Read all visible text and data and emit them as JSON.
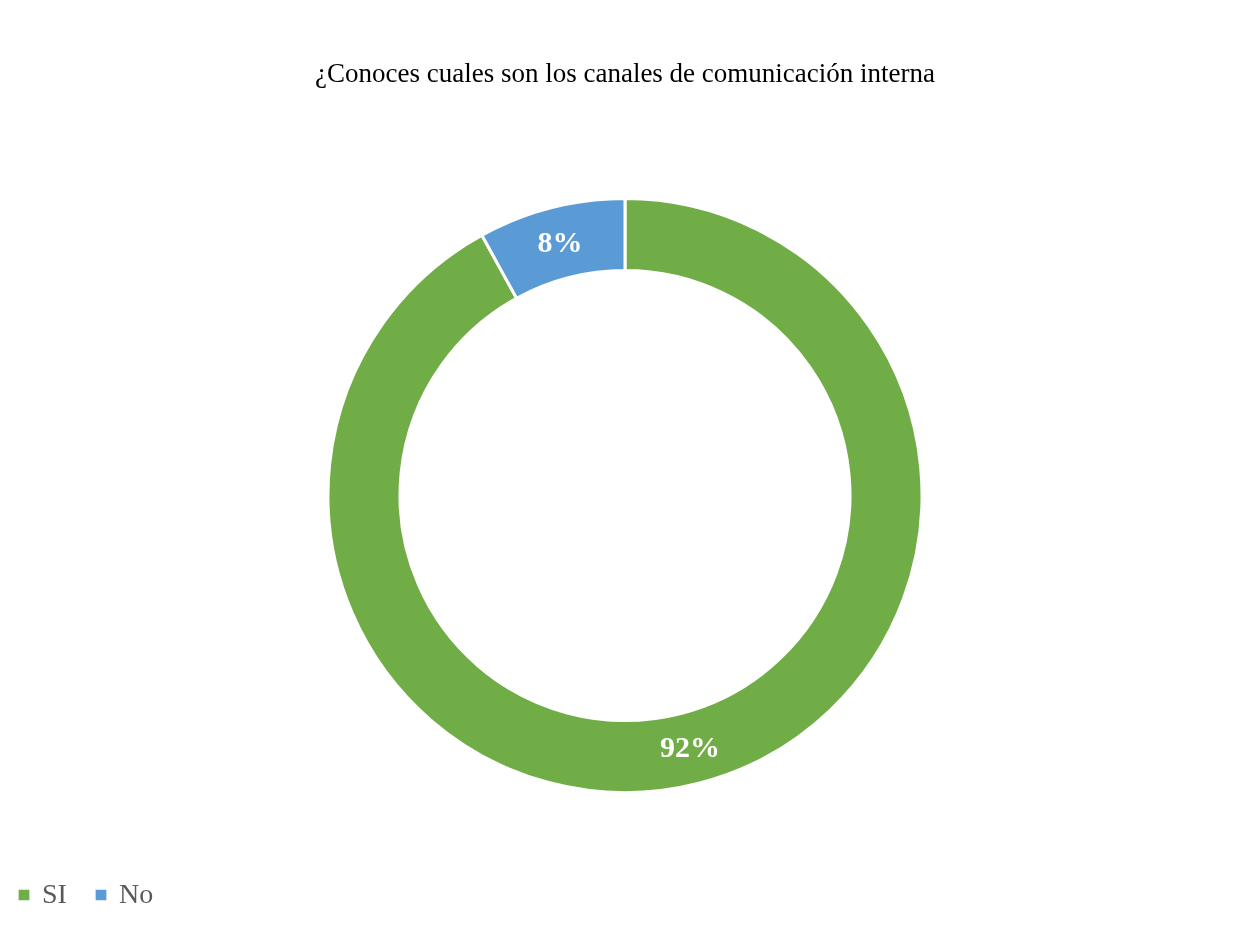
{
  "chart_data": {
    "type": "donut",
    "title": "¿Conoces cuales son los canales de comunicación interna",
    "categories": [
      "SI",
      "No"
    ],
    "values": [
      92,
      8
    ],
    "colors": [
      "#70ad47",
      "#5b9bd5"
    ],
    "value_labels": [
      "92%",
      "8%"
    ],
    "legend": "bottom"
  }
}
